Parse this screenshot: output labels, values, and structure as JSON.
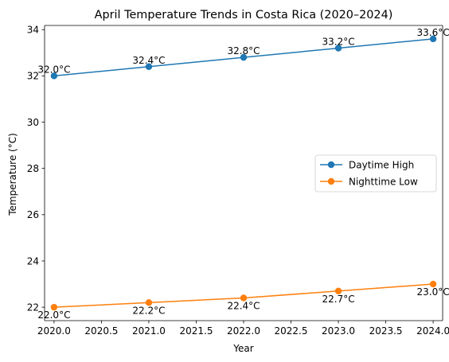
{
  "chart_data": {
    "type": "line",
    "title": "April Temperature Trends in Costa Rica (2020–2024)",
    "xlabel": "Year",
    "ylabel": "Temperature (°C)",
    "x": [
      2020,
      2021,
      2022,
      2023,
      2024
    ],
    "xlim": [
      2019.9,
      2024.1
    ],
    "ylim": [
      21.42,
      34.18
    ],
    "xticks": [
      2020.0,
      2020.5,
      2021.0,
      2021.5,
      2022.0,
      2022.5,
      2023.0,
      2023.5,
      2024.0
    ],
    "xtick_labels": [
      "2020.0",
      "2020.5",
      "2021.0",
      "2021.5",
      "2022.0",
      "2022.5",
      "2023.0",
      "2023.5",
      "2024.0"
    ],
    "yticks": [
      22,
      24,
      26,
      28,
      30,
      32,
      34
    ],
    "ytick_labels": [
      "22",
      "24",
      "26",
      "28",
      "30",
      "32",
      "34"
    ],
    "grid": false,
    "legend_position": "center-right",
    "series": [
      {
        "name": "Daytime High",
        "color": "#1f77b4",
        "marker": "circle",
        "values": [
          32.0,
          32.4,
          32.8,
          33.2,
          33.6
        ],
        "labels": [
          "32.0°C",
          "32.4°C",
          "32.8°C",
          "33.2°C",
          "33.6°C"
        ],
        "label_position": "above"
      },
      {
        "name": "Nighttime Low",
        "color": "#ff7f0e",
        "marker": "circle",
        "values": [
          22.0,
          22.2,
          22.4,
          22.7,
          23.0
        ],
        "labels": [
          "22.0°C",
          "22.2°C",
          "22.4°C",
          "22.7°C",
          "23.0°C"
        ],
        "label_position": "below"
      }
    ]
  }
}
